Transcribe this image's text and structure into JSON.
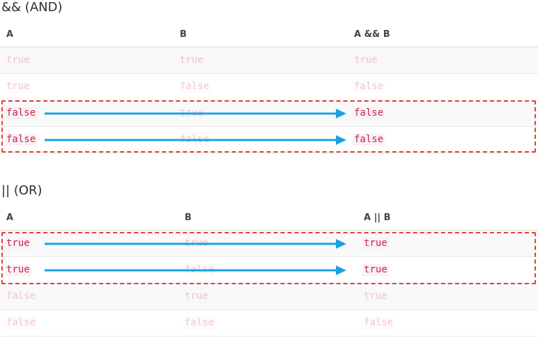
{
  "and_table": {
    "title": "&& (AND)",
    "headers": [
      "A",
      "B",
      "A && B"
    ],
    "rows": [
      [
        "true",
        "true",
        "true"
      ],
      [
        "true",
        "false",
        "false"
      ],
      [
        "false",
        "true",
        "false"
      ],
      [
        "false",
        "false",
        "false"
      ]
    ]
  },
  "or_table": {
    "title": "|| (OR)",
    "headers": [
      "A",
      "B",
      "A || B"
    ],
    "rows": [
      [
        "true",
        "true",
        "true"
      ],
      [
        "true",
        "false",
        "true"
      ],
      [
        "false",
        "true",
        "true"
      ],
      [
        "false",
        "false",
        "false"
      ]
    ]
  },
  "colors": {
    "arrow": "#1ba1e2",
    "highlight_box": "#e6402f",
    "code_text": "#c7254e",
    "code_bg": "#f9f2f4"
  }
}
